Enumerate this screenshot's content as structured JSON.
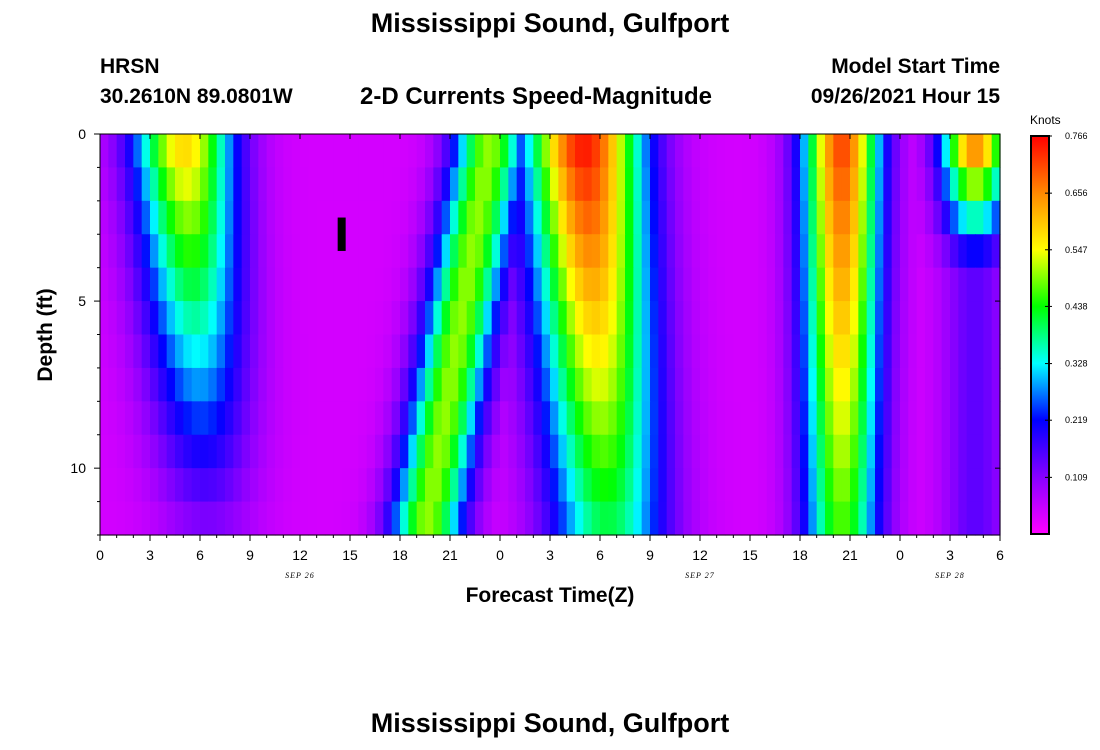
{
  "page": {
    "title": "Mississippi Sound, Gulfport",
    "title_bottom": "Mississippi Sound, Gulfport",
    "station": "HRSN",
    "coordinates": "30.2610N  89.0801W",
    "subtitle": "2-D Currents Speed-Magnitude",
    "model_start_label": "Model Start Time",
    "model_start_value": "09/26/2021 Hour 15"
  },
  "chart_data": {
    "type": "heatmap",
    "xlabel": "Forecast Time(Z)",
    "ylabel": "Depth (ft)",
    "x_tick_labels": [
      "0",
      "3",
      "6",
      "9",
      "12",
      "15",
      "18",
      "21",
      "0",
      "3",
      "6",
      "9",
      "12",
      "15",
      "18",
      "21",
      "0",
      "3",
      "6"
    ],
    "x_range_hours": [
      0,
      54
    ],
    "date_labels": [
      {
        "text": "SEP 26",
        "hour": 12
      },
      {
        "text": "SEP 27",
        "hour": 36
      },
      {
        "text": "SEP 28",
        "hour": 51
      }
    ],
    "y_ticks": [
      0,
      5,
      10
    ],
    "y_range_ft": [
      0,
      12
    ],
    "colorbar": {
      "units": "Knots",
      "tick_labels": [
        "0.766",
        "0.656",
        "0.547",
        "0.438",
        "0.328",
        "0.219",
        "0.109"
      ],
      "tick_values": [
        0.766,
        0.656,
        0.547,
        0.438,
        0.328,
        0.219,
        0.109
      ],
      "range": [
        0.0,
        0.766
      ],
      "colors": [
        "#ff00ff",
        "#8800ff",
        "#0000ff",
        "#00ffff",
        "#00ff00",
        "#ffff00",
        "#ff8800",
        "#ff0000"
      ]
    },
    "model_start_hour": 14.5,
    "time_step_hours": 0.5,
    "depth_step_ft": 1,
    "speed_model": {
      "peaks": [
        {
          "hour": 6.5,
          "peak": 0.6,
          "half_width": 3.0,
          "surface_shift_hours": -1.5,
          "depth_decay": 0.07
        },
        {
          "hour": 19.5,
          "peak": 0.5,
          "half_width": 2.2,
          "surface_shift_hours": 4.0,
          "depth_decay": 0.0
        },
        {
          "hour": 30.5,
          "peak": 0.76,
          "half_width": 3.5,
          "surface_shift_hours": -1.5,
          "depth_decay": 0.04
        },
        {
          "hour": 44.5,
          "peak": 0.72,
          "half_width": 2.3,
          "surface_shift_hours": 0.0,
          "depth_decay": 0.03
        },
        {
          "hour": 52.5,
          "peak": 0.72,
          "half_width": 2.0,
          "surface_shift_hours": 0.0,
          "depth_decay": 0.2
        }
      ],
      "minimum": 0.04
    }
  }
}
